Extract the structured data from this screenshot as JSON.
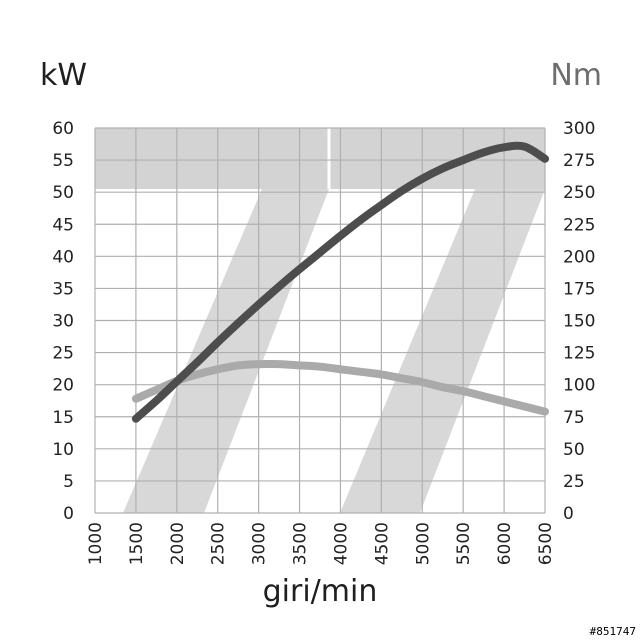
{
  "chart_data": {
    "type": "line",
    "xlabel": "giri/min",
    "ylabel_left": "kW",
    "ylabel_right": "Nm",
    "xlim": [
      1000,
      6500
    ],
    "ylim_left": [
      0,
      60
    ],
    "ylim_right": [
      0,
      300
    ],
    "x_ticks": [
      1000,
      1500,
      2000,
      2500,
      3000,
      3500,
      4000,
      4500,
      5000,
      5500,
      6000,
      6500
    ],
    "y_ticks_left": [
      0,
      5,
      10,
      15,
      20,
      25,
      30,
      35,
      40,
      45,
      50,
      55,
      60
    ],
    "y_ticks_right": [
      0,
      25,
      50,
      75,
      100,
      125,
      150,
      175,
      200,
      225,
      250,
      275,
      300
    ],
    "grid": true,
    "series": [
      {
        "axis": "left",
        "color": "#4d4d4d",
        "x": [
          1500,
          1750,
          2000,
          2250,
          2500,
          2750,
          3000,
          3250,
          3500,
          3750,
          4000,
          4250,
          4500,
          4750,
          5000,
          5250,
          5500,
          5750,
          6000,
          6250,
          6500
        ],
        "y": [
          14.7,
          17.5,
          20.5,
          23.5,
          26.6,
          29.6,
          32.5,
          35.3,
          38.0,
          40.6,
          43.2,
          45.7,
          48.0,
          50.2,
          52.1,
          53.7,
          55.0,
          56.2,
          57.0,
          57.1,
          55.2
        ]
      },
      {
        "axis": "right",
        "color": "#aaaaaa",
        "x": [
          1500,
          1750,
          2000,
          2250,
          2500,
          2750,
          3000,
          3250,
          3500,
          3750,
          4000,
          4250,
          4500,
          4750,
          5000,
          5250,
          5500,
          5750,
          6000,
          6250,
          6500
        ],
        "y": [
          89,
          96,
          103,
          108,
          112,
          115,
          116,
          116,
          115,
          114,
          112,
          110,
          108,
          105,
          102,
          98,
          95,
          91,
          87,
          83,
          79
        ]
      }
    ],
    "colors": {
      "grid": "#b0b0b0",
      "background_band": "#d3d3d3",
      "power": "#4d4d4d",
      "torque": "#aaaaaa"
    }
  },
  "watermark": "#851747"
}
